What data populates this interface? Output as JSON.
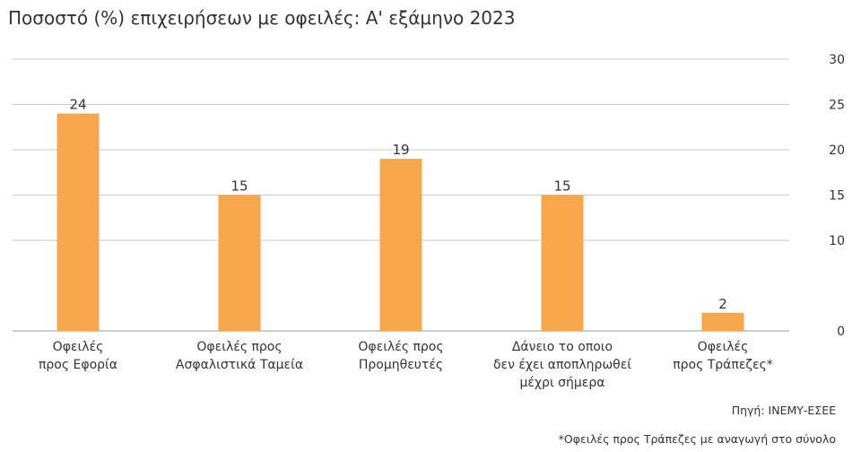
{
  "chart_data": {
    "type": "bar",
    "title": "Ποσοστό (%) επιχειρήσεων με οφειλές: Α' εξάμηνο 2023",
    "categories": [
      [
        "Οφειλές",
        "προς Εφορία"
      ],
      [
        "Οφειλές προς",
        "Ασφαλιστικά Ταμεία"
      ],
      [
        "Οφειλές προς",
        "Προμηθευτές"
      ],
      [
        "Δάνειο το οποιο",
        "δεν έχει αποπληρωθεί",
        "μέχρι σήμερα"
      ],
      [
        "Οφειλές",
        "προς Τράπεζες*"
      ]
    ],
    "values": [
      24,
      15,
      19,
      15,
      2
    ],
    "data_labels": [
      "24",
      "15",
      "19",
      "15",
      "2"
    ],
    "ylim": [
      0,
      30
    ],
    "yticks": [
      0,
      10,
      15,
      20,
      25,
      30
    ],
    "y_axis_side": "right",
    "grid": true,
    "bar_color": "#f6a64b",
    "grid_color": "#c8c8c8",
    "legend": "none"
  },
  "notes": {
    "source": "Πηγή: ΙΝΕΜΥ-ΕΣΕΕ",
    "footnote": "*Οφειλές προς Τράπεζες με αναγωγή στο σύνολο"
  }
}
